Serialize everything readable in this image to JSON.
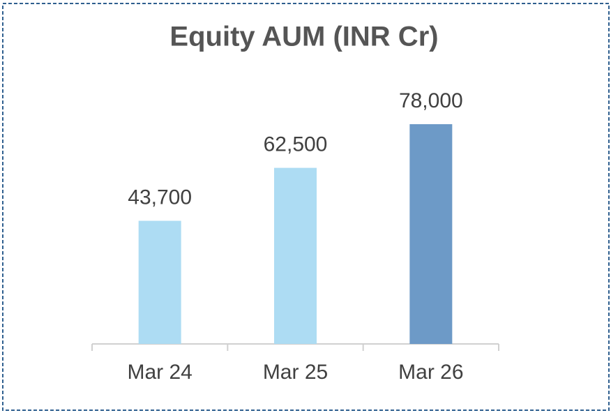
{
  "chart_data": {
    "type": "bar",
    "title": "Equity AUM (INR Cr)",
    "categories": [
      "Mar 24",
      "Mar 25",
      "Mar 26"
    ],
    "values": [
      43700,
      62500,
      78000
    ],
    "value_labels": [
      "43,700",
      "62,500",
      "78,000"
    ],
    "colors": [
      "#addcf3",
      "#addcf3",
      "#6d9ac7"
    ]
  }
}
